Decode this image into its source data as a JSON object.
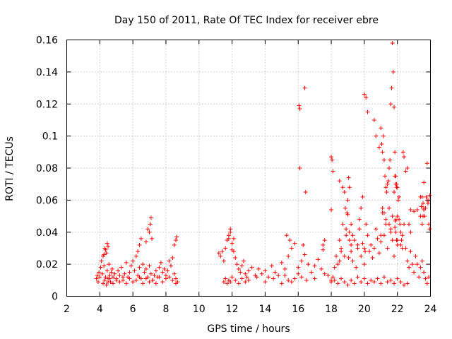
{
  "chart_data": {
    "type": "scatter",
    "title": "Day 150 of 2011, Rate Of TEC Index for receiver ebre",
    "xlabel": "GPS time / hours",
    "ylabel": "ROTI / TECUs",
    "xlim": [
      2,
      24
    ],
    "ylim": [
      0,
      0.16
    ],
    "x_ticks": [
      2,
      4,
      6,
      8,
      10,
      12,
      14,
      16,
      18,
      20,
      22,
      24
    ],
    "x_tick_labels": [
      "2",
      "4",
      "6",
      "8",
      "10",
      "12",
      "14",
      "16",
      "18",
      "20",
      "22",
      "24"
    ],
    "y_ticks": [
      0,
      0.02,
      0.04,
      0.06,
      0.08,
      0.1,
      0.12,
      0.14,
      0.16
    ],
    "y_tick_labels": [
      "0",
      "0.02",
      "0.04",
      "0.06",
      "0.08",
      "0.1",
      "0.12",
      "0.14",
      "0.16"
    ],
    "grid": true,
    "marker": "+",
    "color": "#ff0000",
    "series": [
      {
        "name": "ROTI",
        "x": [
          3.8,
          3.85,
          3.9,
          3.95,
          4.0,
          4.05,
          4.1,
          4.15,
          4.2,
          4.25,
          4.3,
          4.35,
          4.4,
          4.45,
          4.5,
          4.55,
          4.6,
          4.65,
          4.7,
          4.75,
          4.8,
          4.9,
          5.0,
          5.1,
          5.2,
          5.3,
          5.4,
          5.5,
          5.6,
          5.7,
          5.8,
          5.9,
          6.0,
          6.1,
          6.2,
          6.3,
          6.4,
          6.5,
          6.6,
          6.7,
          6.8,
          6.9,
          7.0,
          7.1,
          7.2,
          7.3,
          7.4,
          7.5,
          7.6,
          7.7,
          7.8,
          7.9,
          8.0,
          8.1,
          8.2,
          8.3,
          8.4,
          8.5,
          8.6,
          8.7,
          4.2,
          4.3,
          4.4,
          4.5,
          4.6,
          4.8,
          5.0,
          5.2,
          5.4,
          5.6,
          5.8,
          6.0,
          6.2,
          6.4,
          6.6,
          6.8,
          7.0,
          7.2,
          7.4,
          7.6,
          7.8,
          8.0,
          8.2,
          8.4,
          8.6,
          6.3,
          6.4,
          6.5,
          6.8,
          6.9,
          7.0,
          7.05,
          7.1,
          7.15,
          8.5,
          8.6,
          8.65,
          4.25,
          4.35,
          4.45,
          4.5,
          11.2,
          11.3,
          11.4,
          11.5,
          11.6,
          11.7,
          11.8,
          11.9,
          12.0,
          12.1,
          12.2,
          12.3,
          12.4,
          12.5,
          12.6,
          12.7,
          12.8,
          12.9,
          13.0,
          13.2,
          13.4,
          13.6,
          13.8,
          14.0,
          14.2,
          14.4,
          14.6,
          14.8,
          15.0,
          15.2,
          15.4,
          15.6,
          15.8,
          16.0,
          16.2,
          16.4,
          16.6,
          16.8,
          17.0,
          17.2,
          17.4,
          17.6,
          17.8,
          18.0,
          11.5,
          11.6,
          11.7,
          11.8,
          11.9,
          12.0,
          12.2,
          12.4,
          12.6,
          12.8,
          13.0,
          13.5,
          14.0,
          14.5,
          15.0,
          15.2,
          15.4,
          15.6,
          15.8,
          16.0,
          16.2,
          16.5,
          17.0,
          17.5,
          11.8,
          11.9,
          12.0,
          12.1,
          15.3,
          15.5,
          16.3,
          16.4,
          16.1,
          16.1,
          16.05,
          16.45,
          17.5,
          17.6,
          18.0,
          18.1,
          18.2,
          18.3,
          18.4,
          18.5,
          18.6,
          18.7,
          18.8,
          18.9,
          19.0,
          19.1,
          19.2,
          19.3,
          19.4,
          19.5,
          19.6,
          19.7,
          19.8,
          19.9,
          20.0,
          20.1,
          20.2,
          20.3,
          20.4,
          20.5,
          20.6,
          20.7,
          20.8,
          20.9,
          21.0,
          21.1,
          21.2,
          21.3,
          21.4,
          21.5,
          21.6,
          21.7,
          21.8,
          21.9,
          22.0,
          22.1,
          22.2,
          22.3,
          22.4,
          22.5,
          22.6,
          22.7,
          22.8,
          22.9,
          23.0,
          23.1,
          23.2,
          23.3,
          23.4,
          23.5,
          23.6,
          23.7,
          23.8,
          23.9,
          18.0,
          18.2,
          18.4,
          18.6,
          18.8,
          19.0,
          19.2,
          19.4,
          19.6,
          19.8,
          20.0,
          20.2,
          20.4,
          20.6,
          20.8,
          21.0,
          21.2,
          21.4,
          21.6,
          21.8,
          22.0,
          22.2,
          22.4,
          22.6,
          22.8,
          23.0,
          23.2,
          23.4,
          23.6,
          23.8,
          18.0,
          18.05,
          18.1,
          18.5,
          18.7,
          18.8,
          18.85,
          18.9,
          18.95,
          19.0,
          19.05,
          19.1,
          19.2,
          19.3,
          19.6,
          19.7,
          19.8,
          19.9,
          20.0,
          20.1,
          20.2,
          20.6,
          20.7,
          20.9,
          21.0,
          21.05,
          21.1,
          21.15,
          21.2,
          21.25,
          21.3,
          21.35,
          21.4,
          21.45,
          21.5,
          21.55,
          21.6,
          21.65,
          21.7,
          21.75,
          21.8,
          21.85,
          21.9,
          21.95,
          22.0,
          22.05,
          22.1,
          22.15,
          22.2,
          22.25,
          22.3,
          22.35,
          22.4,
          22.5,
          22.6,
          22.7,
          22.8,
          23.4,
          23.45,
          23.5,
          23.55,
          23.6,
          23.65,
          23.7,
          23.75,
          23.8,
          23.85,
          23.9,
          23.95,
          21.0,
          21.1,
          21.2,
          21.3,
          21.5,
          21.6,
          21.7,
          21.8,
          21.85,
          21.9,
          21.95,
          22.0,
          21.88,
          21.92,
          21.85,
          21.95,
          22.0,
          18.5,
          18.6,
          19.05,
          19.1,
          19.2,
          20.0,
          20.05,
          23.5,
          23.55,
          23.6,
          23.9,
          23.95
        ],
        "y": [
          0.011,
          0.013,
          0.009,
          0.015,
          0.012,
          0.018,
          0.022,
          0.014,
          0.025,
          0.019,
          0.03,
          0.012,
          0.027,
          0.016,
          0.011,
          0.02,
          0.013,
          0.009,
          0.015,
          0.017,
          0.012,
          0.014,
          0.011,
          0.016,
          0.013,
          0.018,
          0.01,
          0.014,
          0.021,
          0.012,
          0.015,
          0.019,
          0.022,
          0.016,
          0.025,
          0.013,
          0.018,
          0.011,
          0.02,
          0.015,
          0.017,
          0.012,
          0.019,
          0.014,
          0.01,
          0.013,
          0.016,
          0.012,
          0.018,
          0.021,
          0.015,
          0.017,
          0.013,
          0.016,
          0.022,
          0.019,
          0.024,
          0.014,
          0.011,
          0.009,
          0.008,
          0.01,
          0.007,
          0.009,
          0.011,
          0.008,
          0.01,
          0.009,
          0.012,
          0.008,
          0.011,
          0.009,
          0.01,
          0.012,
          0.008,
          0.011,
          0.009,
          0.01,
          0.008,
          0.012,
          0.009,
          0.011,
          0.012,
          0.01,
          0.008,
          0.028,
          0.032,
          0.036,
          0.034,
          0.042,
          0.04,
          0.045,
          0.049,
          0.036,
          0.032,
          0.035,
          0.037,
          0.026,
          0.029,
          0.033,
          0.031,
          0.027,
          0.025,
          0.028,
          0.022,
          0.03,
          0.035,
          0.038,
          0.042,
          0.033,
          0.028,
          0.024,
          0.02,
          0.017,
          0.015,
          0.019,
          0.022,
          0.014,
          0.012,
          0.016,
          0.018,
          0.013,
          0.017,
          0.014,
          0.016,
          0.012,
          0.019,
          0.015,
          0.013,
          0.021,
          0.017,
          0.025,
          0.03,
          0.033,
          0.018,
          0.022,
          0.026,
          0.02,
          0.015,
          0.019,
          0.023,
          0.017,
          0.014,
          0.013,
          0.01,
          0.009,
          0.011,
          0.008,
          0.01,
          0.009,
          0.012,
          0.01,
          0.008,
          0.011,
          0.009,
          0.01,
          0.012,
          0.009,
          0.011,
          0.008,
          0.013,
          0.01,
          0.009,
          0.011,
          0.014,
          0.012,
          0.01,
          0.011,
          0.032,
          0.036,
          0.04,
          0.029,
          0.036,
          0.038,
          0.035,
          0.032,
          0.13,
          0.117,
          0.08,
          0.119,
          0.065,
          0.029,
          0.035,
          0.054,
          0.012,
          0.018,
          0.025,
          0.02,
          0.035,
          0.03,
          0.045,
          0.025,
          0.038,
          0.051,
          0.04,
          0.028,
          0.022,
          0.035,
          0.018,
          0.03,
          0.042,
          0.025,
          0.033,
          0.02,
          0.045,
          0.038,
          0.028,
          0.032,
          0.024,
          0.03,
          0.042,
          0.036,
          0.027,
          0.034,
          0.052,
          0.038,
          0.045,
          0.03,
          0.055,
          0.042,
          0.05,
          0.025,
          0.04,
          0.035,
          0.048,
          0.032,
          0.038,
          0.045,
          0.03,
          0.022,
          0.018,
          0.028,
          0.02,
          0.015,
          0.025,
          0.02,
          0.012,
          0.018,
          0.022,
          0.015,
          0.011,
          0.008,
          0.012,
          0.009,
          0.01,
          0.008,
          0.011,
          0.009,
          0.007,
          0.01,
          0.008,
          0.012,
          0.009,
          0.011,
          0.008,
          0.01,
          0.009,
          0.011,
          0.008,
          0.012,
          0.009,
          0.01,
          0.008,
          0.011,
          0.009,
          0.007,
          0.008,
          0.054,
          0.053,
          0.054,
          0.062,
          0.071,
          0.083,
          0.087,
          0.085,
          0.078,
          0.072,
          0.068,
          0.065,
          0.055,
          0.042,
          0.052,
          0.06,
          0.074,
          0.068,
          0.045,
          0.038,
          0.032,
          0.048,
          0.055,
          0.062,
          0.126,
          0.124,
          0.115,
          0.11,
          0.1,
          0.093,
          0.105,
          0.095,
          0.09,
          0.1,
          0.085,
          0.075,
          0.068,
          0.065,
          0.07,
          0.072,
          0.08,
          0.085,
          0.12,
          0.13,
          0.158,
          0.14,
          0.118,
          0.09,
          0.075,
          0.07,
          0.068,
          0.06,
          0.062,
          0.045,
          0.04,
          0.035,
          0.03,
          0.09,
          0.087,
          0.078,
          0.08,
          0.045,
          0.04,
          0.05,
          0.056,
          0.062,
          0.058,
          0.054,
          0.05,
          0.055,
          0.062,
          0.06,
          0.058,
          0.045,
          0.042,
          0.038,
          0.055,
          0.052,
          0.048,
          0.045,
          0.04,
          0.035,
          0.065,
          0.075,
          0.07,
          0.068,
          0.05,
          0.047,
          0.048,
          0.043,
          0.035,
          0.032,
          0.022,
          0.028,
          0.024,
          0.035,
          0.032,
          0.03,
          0.028,
          0.045,
          0.05,
          0.055,
          0.06,
          0.063
        ]
      }
    ]
  }
}
